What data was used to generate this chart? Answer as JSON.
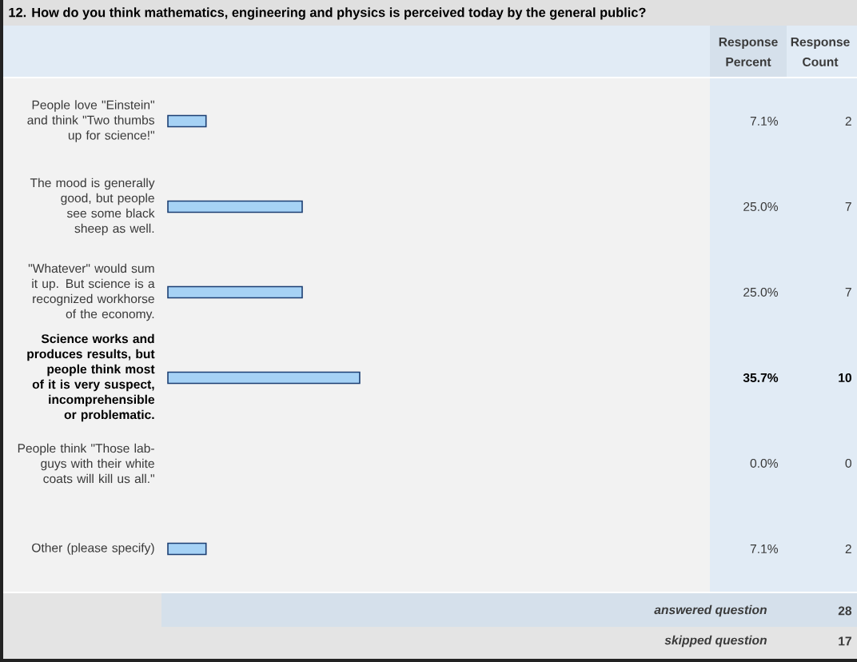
{
  "chart_data": {
    "type": "bar",
    "orientation": "horizontal",
    "title": "12. How do you think mathematics, engineering and physics is perceived today by the general public?",
    "categories": [
      "People love \"Einstein\" and think \"Two thumbs up for science!\"",
      "The mood is generally good, but people see some black sheep as well.",
      "\"Whatever\" would sum it up. But science is a recognized workhorse of the economy.",
      "Science works and produces results, but people think most of it is very suspect, incomprehensible or problematic.",
      "People think \"Those lab-guys with their white coats will kill us all.\"",
      "Other (please specify)"
    ],
    "values": [
      7.1,
      25.0,
      25.0,
      35.7,
      0.0,
      7.1
    ],
    "value_labels": [
      "7.1%",
      "25.0%",
      "25.0%",
      "35.7%",
      "0.0%",
      "7.1%"
    ],
    "color": "#a6d2f5",
    "xlim": [
      0,
      100
    ],
    "tick_labels": "y",
    "annotations": [
      "Response Percent",
      "Response Count",
      "2",
      "7",
      "7",
      "10",
      "0",
      "2",
      "answered question",
      "28",
      "skipped question",
      "17"
    ]
  }
}
